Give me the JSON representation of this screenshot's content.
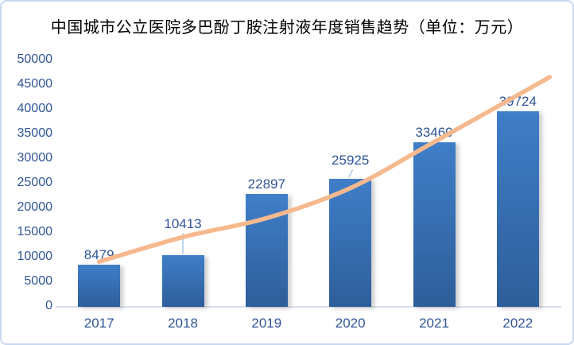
{
  "window": {
    "background_color": "#ffffff",
    "border_color": "#c9d9f0"
  },
  "chart_data": {
    "type": "bar",
    "title": "中国城市公立医院多巴酚丁胺注射液年度销售趋势（单位：万元）",
    "categories": [
      "2017",
      "2018",
      "2019",
      "2020",
      "2021",
      "2022"
    ],
    "values": [
      8479,
      10413,
      22897,
      25925,
      33460,
      39724
    ],
    "data_labels": [
      "8479",
      "10413",
      "22897",
      "25925",
      "33460",
      "39724"
    ],
    "label_leader_lines": [
      false,
      true,
      false,
      true,
      false,
      false
    ],
    "ylim": [
      0,
      50000
    ],
    "ytick_step": 5000,
    "ytick_labels": [
      "0",
      "5000",
      "10000",
      "15000",
      "20000",
      "25000",
      "30000",
      "35000",
      "40000",
      "45000",
      "50000"
    ],
    "grid": false,
    "legend": "none",
    "xlabel": "",
    "ylabel": "",
    "bar_color_top": "#3f7ec8",
    "bar_color_bottom": "#2e5e9a",
    "axis_label_color": "#2f5597",
    "axis_line_color": "#d8e1f0",
    "leader_line_color": "#aecbea",
    "trendline": {
      "style": "smooth",
      "color": "#f5b98d",
      "points_index": [
        0,
        1,
        2,
        3,
        4,
        5.38
      ],
      "points_value": [
        9160,
        14150,
        18000,
        24100,
        33440,
        46620
      ]
    }
  }
}
